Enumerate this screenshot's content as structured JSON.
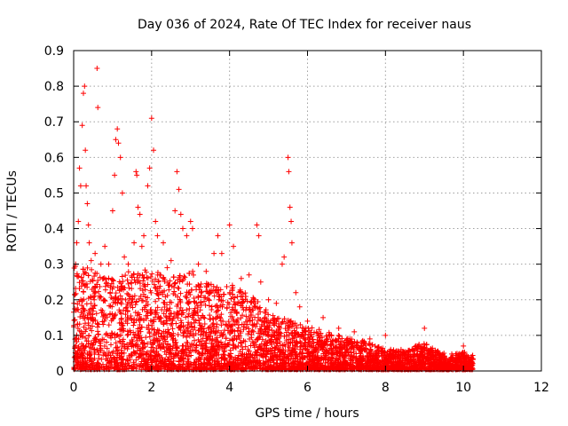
{
  "chart_data": {
    "type": "scatter",
    "title": "Day 036 of 2024, Rate Of TEC Index for receiver naus",
    "xlabel": "GPS time / hours",
    "ylabel": "ROTI / TECUs",
    "xlim": [
      0,
      12
    ],
    "ylim": [
      0,
      0.9
    ],
    "x_ticks": [
      "0",
      "2",
      "4",
      "6",
      "8",
      "10",
      "12"
    ],
    "y_ticks": [
      "0",
      "0.1",
      "0.2",
      "0.3",
      "0.4",
      "0.5",
      "0.6",
      "0.7",
      "0.8",
      "0.9"
    ],
    "grid": true,
    "marker": "+",
    "color": "#ff0000",
    "series": [
      {
        "name": "ROTI",
        "points": [
          [
            0.05,
            0.3
          ],
          [
            0.08,
            0.36
          ],
          [
            0.12,
            0.42
          ],
          [
            0.15,
            0.57
          ],
          [
            0.18,
            0.52
          ],
          [
            0.22,
            0.69
          ],
          [
            0.25,
            0.78
          ],
          [
            0.28,
            0.8
          ],
          [
            0.3,
            0.62
          ],
          [
            0.32,
            0.52
          ],
          [
            0.35,
            0.47
          ],
          [
            0.38,
            0.41
          ],
          [
            0.4,
            0.36
          ],
          [
            0.45,
            0.31
          ],
          [
            0.55,
            0.33
          ],
          [
            0.6,
            0.85
          ],
          [
            0.62,
            0.74
          ],
          [
            0.7,
            0.3
          ],
          [
            0.8,
            0.35
          ],
          [
            0.9,
            0.3
          ],
          [
            1.0,
            0.45
          ],
          [
            1.05,
            0.55
          ],
          [
            1.08,
            0.65
          ],
          [
            1.12,
            0.68
          ],
          [
            1.15,
            0.64
          ],
          [
            1.2,
            0.6
          ],
          [
            1.25,
            0.5
          ],
          [
            1.3,
            0.32
          ],
          [
            1.4,
            0.3
          ],
          [
            1.55,
            0.36
          ],
          [
            1.6,
            0.56
          ],
          [
            1.62,
            0.55
          ],
          [
            1.65,
            0.46
          ],
          [
            1.7,
            0.44
          ],
          [
            1.75,
            0.35
          ],
          [
            1.8,
            0.38
          ],
          [
            1.9,
            0.52
          ],
          [
            1.95,
            0.57
          ],
          [
            2.0,
            0.71
          ],
          [
            2.05,
            0.62
          ],
          [
            2.1,
            0.42
          ],
          [
            2.15,
            0.38
          ],
          [
            2.3,
            0.36
          ],
          [
            2.4,
            0.29
          ],
          [
            2.5,
            0.31
          ],
          [
            2.6,
            0.45
          ],
          [
            2.65,
            0.56
          ],
          [
            2.7,
            0.51
          ],
          [
            2.75,
            0.44
          ],
          [
            2.8,
            0.4
          ],
          [
            2.9,
            0.38
          ],
          [
            3.0,
            0.42
          ],
          [
            3.05,
            0.4
          ],
          [
            3.2,
            0.3
          ],
          [
            3.4,
            0.28
          ],
          [
            3.6,
            0.33
          ],
          [
            3.7,
            0.38
          ],
          [
            3.8,
            0.33
          ],
          [
            4.0,
            0.41
          ],
          [
            4.1,
            0.35
          ],
          [
            4.3,
            0.26
          ],
          [
            4.5,
            0.27
          ],
          [
            4.7,
            0.41
          ],
          [
            4.75,
            0.38
          ],
          [
            4.8,
            0.25
          ],
          [
            5.0,
            0.2
          ],
          [
            5.2,
            0.19
          ],
          [
            5.35,
            0.3
          ],
          [
            5.4,
            0.32
          ],
          [
            5.5,
            0.6
          ],
          [
            5.52,
            0.56
          ],
          [
            5.55,
            0.46
          ],
          [
            5.58,
            0.42
          ],
          [
            5.6,
            0.36
          ],
          [
            5.7,
            0.22
          ],
          [
            5.8,
            0.18
          ],
          [
            6.0,
            0.14
          ],
          [
            6.4,
            0.15
          ],
          [
            6.8,
            0.12
          ],
          [
            7.2,
            0.11
          ],
          [
            7.6,
            0.09
          ],
          [
            8.0,
            0.1
          ],
          [
            8.4,
            0.06
          ],
          [
            9.0,
            0.12
          ],
          [
            9.5,
            0.05
          ],
          [
            10.0,
            0.07
          ],
          [
            10.2,
            0.04
          ]
        ]
      }
    ],
    "dense_envelope": [
      [
        0.0,
        0.3
      ],
      [
        0.5,
        0.28
      ],
      [
        1.0,
        0.26
      ],
      [
        1.5,
        0.28
      ],
      [
        2.0,
        0.28
      ],
      [
        2.5,
        0.26
      ],
      [
        3.0,
        0.28
      ],
      [
        3.5,
        0.24
      ],
      [
        4.0,
        0.24
      ],
      [
        4.5,
        0.22
      ],
      [
        5.0,
        0.16
      ],
      [
        5.5,
        0.14
      ],
      [
        6.0,
        0.12
      ],
      [
        6.5,
        0.11
      ],
      [
        7.0,
        0.09
      ],
      [
        7.5,
        0.08
      ],
      [
        8.0,
        0.06
      ],
      [
        8.5,
        0.05
      ],
      [
        9.0,
        0.08
      ],
      [
        9.5,
        0.04
      ],
      [
        10.0,
        0.05
      ],
      [
        10.25,
        0.04
      ]
    ]
  }
}
